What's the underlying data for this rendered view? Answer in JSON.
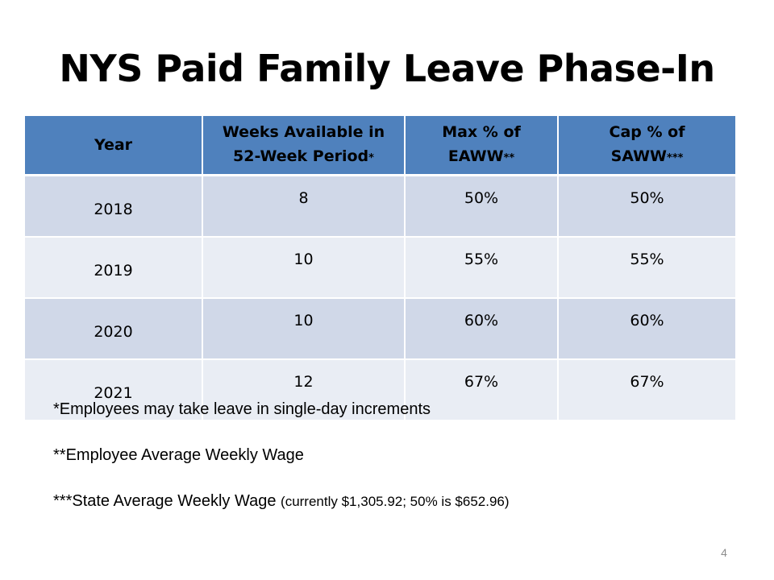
{
  "title": "NYS Paid Family Leave Phase-In",
  "table": {
    "headers": [
      {
        "line1": "Year",
        "line2": "",
        "mark": ""
      },
      {
        "line1": "Weeks Available  in",
        "line2": "52-Week Period",
        "mark": "*"
      },
      {
        "line1": "Max % of",
        "line2": "EAWW",
        "mark": "**"
      },
      {
        "line1": "Cap % of",
        "line2": "SAWW",
        "mark": "***"
      }
    ],
    "rows": [
      {
        "year": "2018",
        "weeks": "8",
        "max_pct": "50%",
        "cap_pct": "50%"
      },
      {
        "year": "2019",
        "weeks": "10",
        "max_pct": "55%",
        "cap_pct": "55%"
      },
      {
        "year": "2020",
        "weeks": "10",
        "max_pct": "60%",
        "cap_pct": "60%"
      },
      {
        "year": "2021",
        "weeks": "12",
        "max_pct": "67%",
        "cap_pct": "67%"
      }
    ]
  },
  "notes": [
    {
      "text": "*Employees may take leave in single-day increments",
      "detail": ""
    },
    {
      "text": "**Employee Average Weekly Wage",
      "detail": ""
    },
    {
      "text": "***State Average Weekly Wage",
      "detail": "(currently $1,305.92; 50% is $652.96)"
    }
  ],
  "page_number": "4",
  "colors": {
    "header_fill": "#4f81bd",
    "row_dark": "#d0d8e8",
    "row_light": "#e9edf4"
  }
}
